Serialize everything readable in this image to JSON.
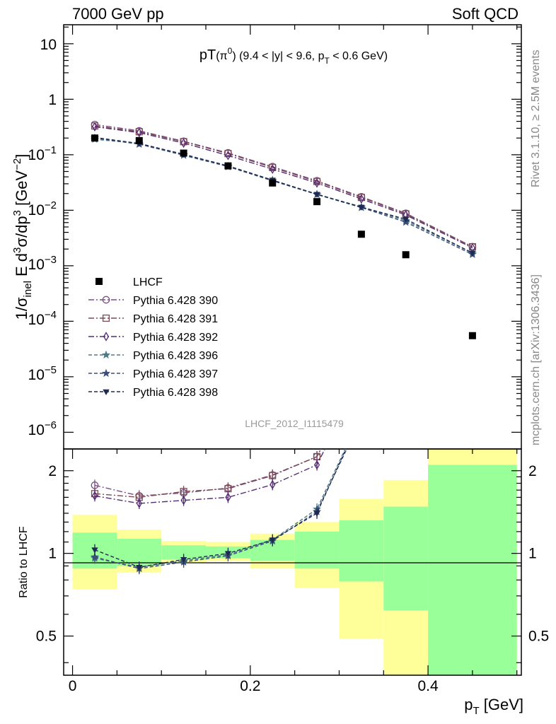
{
  "header": {
    "left": "7000 GeV pp",
    "right": "Soft QCD"
  },
  "side_labels": {
    "top": "Rivet 3.1.10, ≥ 2.5M events",
    "bottom": "mcplots.cern.ch [arXiv:1306.3436]"
  },
  "watermark": "LHCF_2012_I1115479",
  "chart_data": {
    "type": "scatter",
    "title": "pT(π⁰) (9.4 < |y| < 9.6, p_T < 0.6 GeV)",
    "xlabel": "p_T [GeV]",
    "ylabel": "1/σ_inel E d³σ/dp³ [GeV⁻²]",
    "ratio_ylabel": "Ratio to LHCF",
    "xlim": [
      -0.01,
      0.505
    ],
    "ylim": [
      5e-07,
      22
    ],
    "ratio_ylim": [
      0.36,
      2.4
    ],
    "x_ticks": [
      "0",
      "0.2",
      "0.4"
    ],
    "ratio_ticks": [
      "0.5",
      "1",
      "2"
    ],
    "log_y": true,
    "legend_position": "middle-left",
    "data": {
      "name": "LHCF",
      "color": "#000000",
      "x": [
        0.025,
        0.075,
        0.125,
        0.175,
        0.225,
        0.275,
        0.325,
        0.375,
        0.45
      ],
      "y": [
        0.2,
        0.18,
        0.107,
        0.063,
        0.031,
        0.0143,
        0.0037,
        0.00158,
        5.5e-05
      ]
    },
    "bands": {
      "edges": [
        0.0,
        0.05,
        0.1,
        0.15,
        0.2,
        0.25,
        0.3,
        0.35,
        0.4,
        0.5
      ],
      "yellow": [
        [
          0.74,
          1.38
        ],
        [
          0.85,
          1.22
        ],
        [
          0.93,
          1.11
        ],
        [
          0.94,
          1.1
        ],
        [
          0.88,
          1.18
        ],
        [
          0.75,
          1.3
        ],
        [
          0.49,
          1.58
        ],
        [
          0.36,
          1.85
        ],
        [
          0.36,
          2.4
        ]
      ],
      "green": [
        [
          0.88,
          1.19
        ],
        [
          0.9,
          1.13
        ],
        [
          0.95,
          1.07
        ],
        [
          0.96,
          1.06
        ],
        [
          0.94,
          1.12
        ],
        [
          0.88,
          1.2
        ],
        [
          0.79,
          1.32
        ],
        [
          0.62,
          1.48
        ],
        [
          0.36,
          2.1
        ]
      ]
    },
    "series": [
      {
        "name": "Pythia 6.428 390",
        "color": "#7a4d86",
        "marker": "circle",
        "dash": "8,3,2,3",
        "x": [
          0.025,
          0.075,
          0.125,
          0.175,
          0.225,
          0.275,
          0.325,
          0.375,
          0.45
        ],
        "y": [
          0.35,
          0.27,
          0.175,
          0.108,
          0.061,
          0.034,
          0.0175,
          0.0088,
          0.0022
        ],
        "ratio": [
          1.77,
          1.62,
          1.66,
          1.73,
          1.93,
          2.25,
          4.7,
          5.6,
          40
        ]
      },
      {
        "name": "Pythia 6.428 391",
        "color": "#7b4a52",
        "marker": "square",
        "dash": "8,3,2,3",
        "x": [
          0.025,
          0.075,
          0.125,
          0.175,
          0.225,
          0.275,
          0.325,
          0.375,
          0.45
        ],
        "y": [
          0.33,
          0.26,
          0.172,
          0.105,
          0.059,
          0.033,
          0.017,
          0.0086,
          0.0022
        ],
        "ratio": [
          1.65,
          1.6,
          1.68,
          1.72,
          1.92,
          2.25,
          4.6,
          5.5,
          40
        ]
      },
      {
        "name": "Pythia 6.428 392",
        "color": "#552c74",
        "marker": "diamond",
        "dash": "8,3,2,3",
        "x": [
          0.025,
          0.075,
          0.125,
          0.175,
          0.225,
          0.275,
          0.325,
          0.375,
          0.45
        ],
        "y": [
          0.32,
          0.25,
          0.162,
          0.097,
          0.055,
          0.031,
          0.016,
          0.0082,
          0.0021
        ],
        "ratio": [
          1.62,
          1.52,
          1.56,
          1.6,
          1.78,
          2.1,
          4.4,
          5.3,
          38
        ]
      },
      {
        "name": "Pythia 6.428 396",
        "color": "#4d7a84",
        "marker": "star",
        "dash": "5,3",
        "x": [
          0.025,
          0.075,
          0.125,
          0.175,
          0.225,
          0.275,
          0.325,
          0.375,
          0.45
        ],
        "y": [
          0.19,
          0.16,
          0.1,
          0.062,
          0.035,
          0.0195,
          0.0115,
          0.0065,
          0.0017
        ],
        "ratio": [
          0.96,
          0.89,
          0.94,
          0.99,
          1.12,
          1.45,
          3.2,
          4.2,
          31
        ]
      },
      {
        "name": "Pythia 6.428 397",
        "color": "#3c4f78",
        "marker": "star",
        "dash": "5,3",
        "x": [
          0.025,
          0.075,
          0.125,
          0.175,
          0.225,
          0.275,
          0.325,
          0.375,
          0.45
        ],
        "y": [
          0.2,
          0.155,
          0.098,
          0.061,
          0.034,
          0.0192,
          0.0112,
          0.0061,
          0.0016
        ],
        "ratio": [
          0.97,
          0.88,
          0.93,
          0.98,
          1.11,
          1.42,
          3.1,
          4.0,
          30
        ]
      },
      {
        "name": "Pythia 6.428 398",
        "color": "#1e2a52",
        "marker": "triangle-down",
        "dash": "5,3",
        "x": [
          0.025,
          0.075,
          0.125,
          0.175,
          0.225,
          0.275,
          0.325,
          0.375,
          0.45
        ],
        "y": [
          0.205,
          0.16,
          0.102,
          0.063,
          0.035,
          0.0194,
          0.0114,
          0.0069,
          0.0017
        ],
        "ratio": [
          1.03,
          0.89,
          0.95,
          1.0,
          1.12,
          1.4,
          3.2,
          4.3,
          31
        ]
      }
    ]
  }
}
